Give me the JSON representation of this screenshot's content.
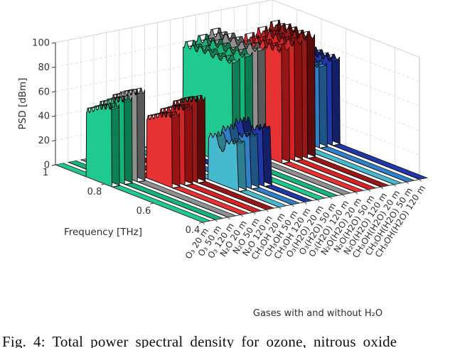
{
  "figure": {
    "caption": "Fig. 4: Total power spectral density for ozone, nitrous oxide"
  },
  "chart_data": {
    "type": "area",
    "variant": "3d-waterfall-ribbon-plot",
    "title": "",
    "xlabel": "Frequency [THz]",
    "xlim": [
      0.4,
      1.0
    ],
    "x_ticks": [
      "1",
      "0.8",
      "0.6",
      "0.4"
    ],
    "ylabel": "PSD [dBm]",
    "ylim": [
      0,
      100
    ],
    "y_ticks": [
      0,
      20,
      40,
      60,
      80,
      100
    ],
    "category_axis_label": "Gases with and without H₂O",
    "grid": true,
    "legend": false,
    "categories": [
      "O₃ 20 m",
      "O₃ 50 m",
      "O₃ 120 m",
      "N₂O 20 m",
      "N₂O 50 m",
      "N₂O 120 m",
      "CH₃OH 20 m",
      "CH₃OH 50 m",
      "CH₃OH 120 m",
      "O₃(H2O) 20 m",
      "O₃(H2O) 50 m",
      "O₃(H2O) 120 m",
      "N₂O(H2O) 20 m",
      "N₂O(H2O) 50 m",
      "N₂O(H2O) 120 m",
      "CH₃OH(H2O) 20 m",
      "CH₃OH(H2O) 50 m",
      "CH₃OH(H2O) 120 m"
    ],
    "profiles": {
      "rising": [
        [
          0,
          0
        ],
        [
          0.015,
          0.8
        ],
        [
          0.06,
          0.86
        ],
        [
          0.12,
          0.81
        ],
        [
          0.19,
          0.88
        ],
        [
          0.27,
          0.84
        ],
        [
          0.34,
          0.92
        ],
        [
          0.42,
          0.88
        ],
        [
          0.5,
          0.95
        ],
        [
          0.58,
          0.91
        ],
        [
          0.66,
          0.97
        ],
        [
          0.74,
          0.93
        ],
        [
          0.82,
          1.0
        ],
        [
          0.9,
          0.96
        ],
        [
          0.985,
          1.0
        ],
        [
          1,
          0
        ]
      ],
      "dipped": [
        [
          0,
          0
        ],
        [
          0.02,
          0.86
        ],
        [
          0.08,
          0.97
        ],
        [
          0.15,
          0.89
        ],
        [
          0.22,
          1.0
        ],
        [
          0.3,
          0.92
        ],
        [
          0.38,
          0.74
        ],
        [
          0.46,
          0.68
        ],
        [
          0.54,
          0.75
        ],
        [
          0.62,
          0.96
        ],
        [
          0.7,
          0.89
        ],
        [
          0.78,
          1.0
        ],
        [
          0.86,
          0.93
        ],
        [
          0.94,
          0.98
        ],
        [
          1,
          0
        ]
      ],
      "flat": [
        [
          0,
          0
        ],
        [
          0.015,
          0.94
        ],
        [
          0.06,
          1.0
        ],
        [
          0.12,
          0.96
        ],
        [
          0.19,
          0.99
        ],
        [
          0.26,
          0.95
        ],
        [
          0.33,
          1.0
        ],
        [
          0.41,
          0.97
        ],
        [
          0.49,
          1.0
        ],
        [
          0.57,
          0.96
        ],
        [
          0.65,
          0.99
        ],
        [
          0.73,
          0.96
        ],
        [
          0.81,
          1.0
        ],
        [
          0.89,
          0.97
        ],
        [
          0.985,
          1.0
        ],
        [
          1,
          0
        ]
      ]
    },
    "groups": [
      {
        "gas": "O₃",
        "labels": [
          "O₃ 20 m",
          "O₃ 50 m",
          "O₃ 120 m"
        ],
        "distances_m": [
          20,
          50,
          120
        ],
        "band_thz": [
          0.77,
          0.875
        ],
        "peaks_dbm": [
          66,
          70,
          74
        ],
        "profile": "rising",
        "colors": [
          "#1fc98f",
          "#16b37b",
          "#8f8f8f"
        ],
        "side_colors": [
          "#0f7f58",
          "#0c7a50",
          "#595959"
        ]
      },
      {
        "gas": "N₂O",
        "labels": [
          "N₂O 20 m",
          "N₂O 50 m",
          "N₂O 120 m"
        ],
        "distances_m": [
          20,
          50,
          120
        ],
        "band_thz": [
          0.68,
          0.785
        ],
        "peaks_dbm": [
          60,
          64,
          69
        ],
        "profile": "rising",
        "colors": [
          "#e63232",
          "#d62424",
          "#9a1717"
        ],
        "side_colors": [
          "#991414",
          "#8d0f0f",
          "#5c0b0b"
        ]
      },
      {
        "gas": "CH₃OH",
        "labels": [
          "CH₃OH 20 m",
          "CH₃OH 50 m",
          "CH₃OH 120 m"
        ],
        "distances_m": [
          20,
          50,
          120
        ],
        "band_thz": [
          0.565,
          0.69
        ],
        "peaks_dbm": [
          40,
          44,
          48
        ],
        "profile": "dipped",
        "colors": [
          "#47b9cf",
          "#2f80c6",
          "#2138a8"
        ],
        "side_colors": [
          "#2b7f91",
          "#1d5587",
          "#131f66"
        ]
      },
      {
        "gas": "O₃(H2O)",
        "labels": [
          "O₃(H2O) 20 m",
          "O₃(H2O) 50 m",
          "O₃(H2O) 120 m"
        ],
        "distances_m": [
          20,
          50,
          120
        ],
        "band_thz": [
          0.745,
          0.95
        ],
        "peaks_dbm": [
          87,
          90,
          93
        ],
        "profile": "flat",
        "colors": [
          "#1fc98f",
          "#16b37b",
          "#8f8f8f"
        ],
        "side_colors": [
          "#0f7f58",
          "#0c7a50",
          "#595959"
        ]
      },
      {
        "gas": "N₂O(H2O)",
        "labels": [
          "N₂O(H2O) 20 m",
          "N₂O(H2O) 50 m",
          "N₂O(H2O) 120 m"
        ],
        "distances_m": [
          20,
          50,
          120
        ],
        "band_thz": [
          0.7,
          0.86
        ],
        "peaks_dbm": [
          94,
          97,
          100
        ],
        "profile": "flat",
        "colors": [
          "#e63232",
          "#d62424",
          "#9a1717"
        ],
        "side_colors": [
          "#991414",
          "#8d0f0f",
          "#5c0b0b"
        ]
      },
      {
        "gas": "CH₃OH(H2O)",
        "labels": [
          "CH₃OH(H2O) 20 m",
          "CH₃OH(H2O) 50 m",
          "CH₃OH(H2O) 120 m"
        ],
        "distances_m": [
          20,
          50,
          120
        ],
        "band_thz": [
          0.755,
          0.91
        ],
        "peaks_dbm": [
          65,
          68,
          71
        ],
        "profile": "flat",
        "colors": [
          "#47b9cf",
          "#2f80c6",
          "#2138a8"
        ],
        "side_colors": [
          "#2b7f91",
          "#1d5587",
          "#131f66"
        ]
      }
    ]
  }
}
